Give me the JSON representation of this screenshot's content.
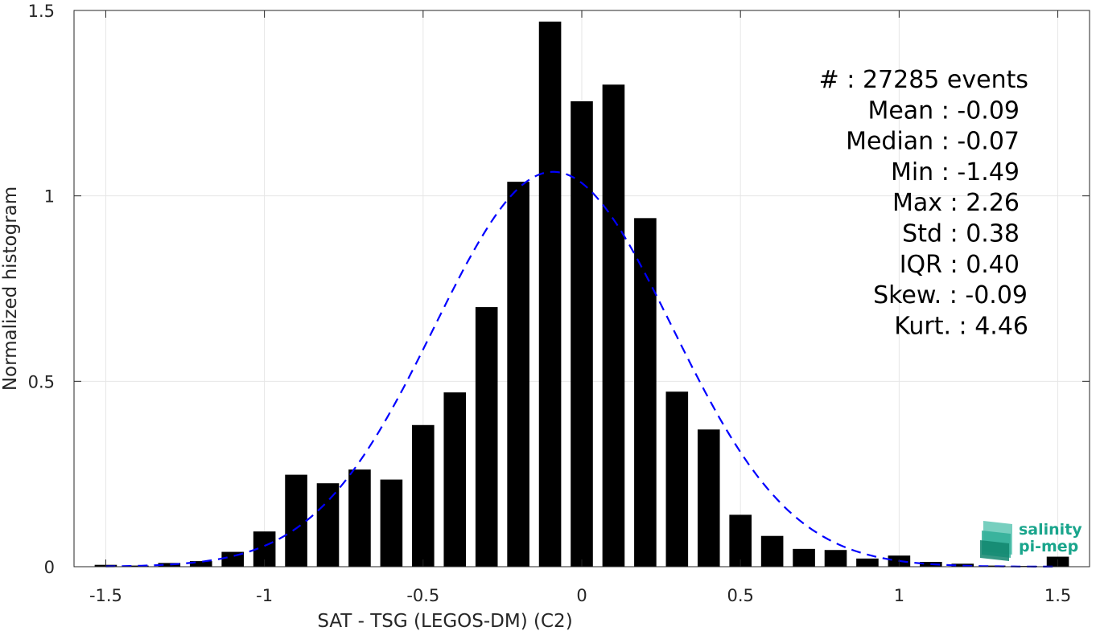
{
  "chart_data": {
    "type": "bar",
    "xlabel": "SAT - TSG (LEGOS-DM) (C2)",
    "ylabel": "Normalized histogram",
    "xlim": [
      -1.6,
      1.6
    ],
    "ylim": [
      0,
      1.5
    ],
    "xticks": [
      -1.5,
      -1,
      -0.5,
      0,
      0.5,
      1,
      1.5
    ],
    "xtick_labels": [
      "-1.5",
      "-1",
      "-0.5",
      "0",
      "0.5",
      "1",
      "1.5"
    ],
    "yticks": [
      0,
      0.5,
      1,
      1.5
    ],
    "ytick_labels": [
      "0",
      "0.5",
      "1",
      "1.5"
    ],
    "grid": true,
    "bin_width": 0.1,
    "bar_color": "#000000",
    "bins": [
      {
        "x": -1.5,
        "y": 0.005
      },
      {
        "x": -1.4,
        "y": 0.003
      },
      {
        "x": -1.3,
        "y": 0.01
      },
      {
        "x": -1.2,
        "y": 0.015
      },
      {
        "x": -1.1,
        "y": 0.04
      },
      {
        "x": -1.0,
        "y": 0.095
      },
      {
        "x": -0.9,
        "y": 0.248
      },
      {
        "x": -0.8,
        "y": 0.225
      },
      {
        "x": -0.7,
        "y": 0.262
      },
      {
        "x": -0.6,
        "y": 0.235
      },
      {
        "x": -0.5,
        "y": 0.382
      },
      {
        "x": -0.4,
        "y": 0.47
      },
      {
        "x": -0.3,
        "y": 0.7
      },
      {
        "x": -0.2,
        "y": 1.038
      },
      {
        "x": -0.1,
        "y": 1.47
      },
      {
        "x": 0.0,
        "y": 1.255
      },
      {
        "x": 0.1,
        "y": 1.3
      },
      {
        "x": 0.2,
        "y": 0.94
      },
      {
        "x": 0.3,
        "y": 0.472
      },
      {
        "x": 0.4,
        "y": 0.37
      },
      {
        "x": 0.5,
        "y": 0.14
      },
      {
        "x": 0.6,
        "y": 0.083
      },
      {
        "x": 0.7,
        "y": 0.048
      },
      {
        "x": 0.8,
        "y": 0.045
      },
      {
        "x": 0.9,
        "y": 0.022
      },
      {
        "x": 1.0,
        "y": 0.03
      },
      {
        "x": 1.1,
        "y": 0.013
      },
      {
        "x": 1.2,
        "y": 0.008
      },
      {
        "x": 1.3,
        "y": 0.003
      },
      {
        "x": 1.4,
        "y": 0.002
      },
      {
        "x": 1.5,
        "y": 0.027
      }
    ],
    "fit_curve": {
      "type": "gaussian",
      "mean": -0.09,
      "std": 0.375,
      "peak": 1.065,
      "x_range": [
        -1.5,
        1.5
      ],
      "color": "#0000ff",
      "style": "dashed"
    },
    "stats": [
      "#  : 27285 events",
      "Mean : -0.09",
      "Median : -0.07",
      "Min : -1.49",
      "Max : 2.26",
      "Std : 0.38",
      "IQR : 0.40",
      "Skew. : -0.09",
      "Kurt. : 4.46"
    ]
  },
  "logo": {
    "line1": "salinity",
    "line2": "pi-mep",
    "color": "#1aa58c"
  }
}
